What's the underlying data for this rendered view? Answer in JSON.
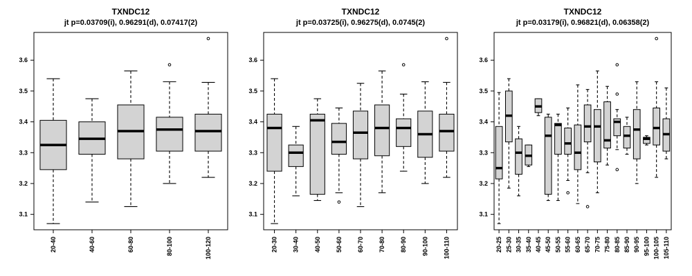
{
  "chart_data": [
    {
      "type": "boxplot",
      "title": "TXNDC12",
      "subtitle": "jt p=0.03709(i), 0.96291(d), 0.07417(2)",
      "ylim": [
        3.05,
        3.69
      ],
      "yticks": [
        3.1,
        3.2,
        3.3,
        3.4,
        3.5,
        3.6
      ],
      "categories": [
        "20-40",
        "40-60",
        "60-80",
        "80-100",
        "100-120"
      ],
      "boxes": [
        {
          "min": 3.07,
          "q1": 3.245,
          "median": 3.325,
          "q3": 3.405,
          "max": 3.54,
          "outliers": []
        },
        {
          "min": 3.14,
          "q1": 3.295,
          "median": 3.345,
          "q3": 3.4,
          "max": 3.475,
          "outliers": []
        },
        {
          "min": 3.125,
          "q1": 3.28,
          "median": 3.37,
          "q3": 3.455,
          "max": 3.565,
          "outliers": []
        },
        {
          "min": 3.2,
          "q1": 3.305,
          "median": 3.375,
          "q3": 3.415,
          "max": 3.53,
          "outliers": [
            3.585
          ]
        },
        {
          "min": 3.22,
          "q1": 3.305,
          "median": 3.37,
          "q3": 3.425,
          "max": 3.528,
          "outliers": [
            3.67
          ]
        }
      ]
    },
    {
      "type": "boxplot",
      "title": "TXNDC12",
      "subtitle": "jt p=0.03725(i), 0.96275(d), 0.0745(2)",
      "ylim": [
        3.05,
        3.69
      ],
      "yticks": [
        3.1,
        3.2,
        3.3,
        3.4,
        3.5,
        3.6
      ],
      "categories": [
        "20-30",
        "30-40",
        "40-50",
        "50-60",
        "60-70",
        "70-80",
        "80-90",
        "90-100",
        "100-110"
      ],
      "boxes": [
        {
          "min": 3.07,
          "q1": 3.24,
          "median": 3.38,
          "q3": 3.425,
          "max": 3.54,
          "outliers": []
        },
        {
          "min": 3.16,
          "q1": 3.255,
          "median": 3.3,
          "q3": 3.325,
          "max": 3.385,
          "outliers": []
        },
        {
          "min": 3.145,
          "q1": 3.165,
          "median": 3.405,
          "q3": 3.425,
          "max": 3.475,
          "outliers": []
        },
        {
          "min": 3.17,
          "q1": 3.295,
          "median": 3.335,
          "q3": 3.395,
          "max": 3.445,
          "outliers": [
            3.14
          ]
        },
        {
          "min": 3.125,
          "q1": 3.28,
          "median": 3.365,
          "q3": 3.435,
          "max": 3.525,
          "outliers": []
        },
        {
          "min": 3.17,
          "q1": 3.29,
          "median": 3.38,
          "q3": 3.455,
          "max": 3.565,
          "outliers": []
        },
        {
          "min": 3.24,
          "q1": 3.32,
          "median": 3.38,
          "q3": 3.41,
          "max": 3.49,
          "outliers": [
            3.585
          ]
        },
        {
          "min": 3.2,
          "q1": 3.285,
          "median": 3.36,
          "q3": 3.435,
          "max": 3.53,
          "outliers": []
        },
        {
          "min": 3.22,
          "q1": 3.305,
          "median": 3.37,
          "q3": 3.425,
          "max": 3.528,
          "outliers": [
            3.67
          ]
        }
      ]
    },
    {
      "type": "boxplot",
      "title": "TXNDC12",
      "subtitle": "jt p=0.03179(i), 0.96821(d), 0.06358(2)",
      "ylim": [
        3.05,
        3.69
      ],
      "yticks": [
        3.1,
        3.2,
        3.3,
        3.4,
        3.5,
        3.6
      ],
      "categories": [
        "20-25",
        "25-30",
        "30-35",
        "35-40",
        "40-45",
        "45-50",
        "50-55",
        "55-60",
        "60-65",
        "65-70",
        "70-75",
        "75-80",
        "80-85",
        "85-90",
        "90-95",
        "95-100",
        "100-105",
        "105-110"
      ],
      "boxes": [
        {
          "min": 3.07,
          "q1": 3.215,
          "median": 3.25,
          "q3": 3.385,
          "max": 3.495,
          "outliers": []
        },
        {
          "min": 3.185,
          "q1": 3.335,
          "median": 3.42,
          "q3": 3.5,
          "max": 3.54,
          "outliers": []
        },
        {
          "min": 3.16,
          "q1": 3.23,
          "median": 3.3,
          "q3": 3.345,
          "max": 3.385,
          "outliers": []
        },
        {
          "min": 3.255,
          "q1": 3.26,
          "median": 3.29,
          "q3": 3.325,
          "max": 3.325,
          "outliers": []
        },
        {
          "min": 3.42,
          "q1": 3.43,
          "median": 3.45,
          "q3": 3.475,
          "max": 3.475,
          "outliers": []
        },
        {
          "min": 3.145,
          "q1": 3.165,
          "median": 3.355,
          "q3": 3.415,
          "max": 3.425,
          "outliers": []
        },
        {
          "min": 3.145,
          "q1": 3.295,
          "median": 3.39,
          "q3": 3.395,
          "max": 3.425,
          "outliers": []
        },
        {
          "min": 3.21,
          "q1": 3.295,
          "median": 3.33,
          "q3": 3.38,
          "max": 3.445,
          "outliers": [
            3.17
          ]
        },
        {
          "min": 3.135,
          "q1": 3.245,
          "median": 3.3,
          "q3": 3.39,
          "max": 3.52,
          "outliers": []
        },
        {
          "min": 3.235,
          "q1": 3.335,
          "median": 3.385,
          "q3": 3.455,
          "max": 3.505,
          "outliers": [
            3.125
          ]
        },
        {
          "min": 3.17,
          "q1": 3.27,
          "median": 3.385,
          "q3": 3.44,
          "max": 3.565,
          "outliers": []
        },
        {
          "min": 3.26,
          "q1": 3.315,
          "median": 3.34,
          "q3": 3.465,
          "max": 3.515,
          "outliers": []
        },
        {
          "min": 3.31,
          "q1": 3.355,
          "median": 3.4,
          "q3": 3.41,
          "max": 3.44,
          "outliers": [
            3.585,
            3.49,
            3.245
          ]
        },
        {
          "min": 3.295,
          "q1": 3.315,
          "median": 3.355,
          "q3": 3.385,
          "max": 3.415,
          "outliers": []
        },
        {
          "min": 3.2,
          "q1": 3.28,
          "median": 3.375,
          "q3": 3.44,
          "max": 3.53,
          "outliers": []
        },
        {
          "min": 3.325,
          "q1": 3.33,
          "median": 3.345,
          "q3": 3.35,
          "max": 3.355,
          "outliers": []
        },
        {
          "min": 3.22,
          "q1": 3.325,
          "median": 3.38,
          "q3": 3.445,
          "max": 3.53,
          "outliers": [
            3.67
          ]
        },
        {
          "min": 3.28,
          "q1": 3.305,
          "median": 3.36,
          "q3": 3.41,
          "max": 3.51,
          "outliers": []
        }
      ]
    }
  ]
}
